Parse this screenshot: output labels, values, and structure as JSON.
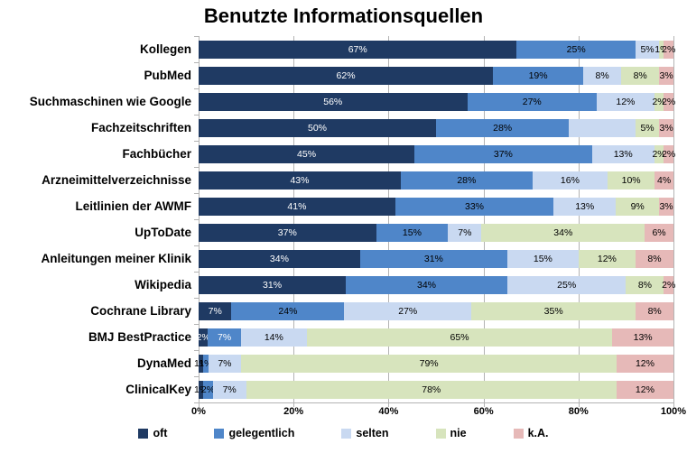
{
  "title": "Benutzte Informationsquellen",
  "colors": {
    "oft": "#1F3A63",
    "gelegentlich": "#4F86C9",
    "selten": "#C9D9F1",
    "nie": "#D7E4BD",
    "kA": "#E6B9B8",
    "grid": "#B3B3B3",
    "label_dark": "#000000",
    "label_light": "#FFFFFF"
  },
  "chart_data": {
    "type": "bar",
    "orientation": "horizontal",
    "stacked": true,
    "title": "Benutzte Informationsquellen",
    "xlabel": "",
    "ylabel": "",
    "xlim": [
      0,
      100
    ],
    "grid": true,
    "legend_position": "bottom",
    "x_ticks": [
      {
        "label": "0%",
        "value": 0
      },
      {
        "label": "20%",
        "value": 20
      },
      {
        "label": "40%",
        "value": 40
      },
      {
        "label": "60%",
        "value": 60
      },
      {
        "label": "80%",
        "value": 80
      },
      {
        "label": "100%",
        "value": 100
      }
    ],
    "legend": [
      {
        "name": "oft",
        "color": "#1F3A63"
      },
      {
        "name": "gelegentlich",
        "color": "#4F86C9"
      },
      {
        "name": "selten",
        "color": "#C9D9F1"
      },
      {
        "name": "nie",
        "color": "#D7E4BD"
      },
      {
        "name": "k.A.",
        "color": "#E6B9B8"
      }
    ],
    "categories": [
      "Kollegen",
      "PubMed",
      "Suchmaschinen wie Google",
      "Fachzeitschriften",
      "Fachbücher",
      "Arzneimittelverzeichnisse",
      "Leitlinien der AWMF",
      "UpToDate",
      "Anleitungen meiner Klinik",
      "Wikipedia",
      "Cochrane Library",
      "BMJ BestPractice",
      "DynaMed",
      "ClinicalKey"
    ],
    "rows": [
      {
        "category": "Kollegen",
        "segments": [
          {
            "series": "oft",
            "value": 67,
            "label": "67%",
            "label_color": "#FFFFFF"
          },
          {
            "series": "gelegentlich",
            "value": 25,
            "label": "25%",
            "label_color": "#000000"
          },
          {
            "series": "selten",
            "value": 5,
            "label": "5%",
            "label_color": "#000000"
          },
          {
            "series": "nie",
            "value": 1,
            "label": "1%",
            "label_color": "#000000"
          },
          {
            "series": "k.A.",
            "value": 2,
            "label": "2%",
            "label_color": "#000000"
          }
        ]
      },
      {
        "category": "PubMed",
        "segments": [
          {
            "series": "oft",
            "value": 62,
            "label": "62%",
            "label_color": "#FFFFFF"
          },
          {
            "series": "gelegentlich",
            "value": 19,
            "label": "19%",
            "label_color": "#000000"
          },
          {
            "series": "selten",
            "value": 8,
            "label": "8%",
            "label_color": "#000000"
          },
          {
            "series": "nie",
            "value": 8,
            "label": "8%",
            "label_color": "#000000"
          },
          {
            "series": "k.A.",
            "value": 3,
            "label": "3%",
            "label_color": "#000000"
          }
        ]
      },
      {
        "category": "Suchmaschinen wie Google",
        "segments": [
          {
            "series": "oft",
            "value": 56,
            "label": "56%",
            "label_color": "#FFFFFF"
          },
          {
            "series": "gelegentlich",
            "value": 27,
            "label": "27%",
            "label_color": "#000000"
          },
          {
            "series": "selten",
            "value": 12,
            "label": "12%",
            "label_color": "#000000"
          },
          {
            "series": "nie",
            "value": 2,
            "label": "2%",
            "label_color": "#000000"
          },
          {
            "series": "k.A.",
            "value": 2,
            "label": "2%",
            "label_color": "#000000"
          }
        ]
      },
      {
        "category": "Fachzeitschriften",
        "segments": [
          {
            "series": "oft",
            "value": 50,
            "label": "50%",
            "label_color": "#FFFFFF"
          },
          {
            "series": "gelegentlich",
            "value": 28,
            "label": "28%",
            "label_color": "#000000"
          },
          {
            "series": "selten",
            "value": 14,
            "label": "",
            "label_color": "#000000"
          },
          {
            "series": "nie",
            "value": 5,
            "label": "5%",
            "label_color": "#000000"
          },
          {
            "series": "k.A.",
            "value": 3,
            "label": "3%",
            "label_color": "#000000"
          }
        ]
      },
      {
        "category": "Fachbücher",
        "segments": [
          {
            "series": "oft",
            "value": 45,
            "label": "45%",
            "label_color": "#FFFFFF"
          },
          {
            "series": "gelegentlich",
            "value": 37,
            "label": "37%",
            "label_color": "#000000"
          },
          {
            "series": "selten",
            "value": 13,
            "label": "13%",
            "label_color": "#000000"
          },
          {
            "series": "nie",
            "value": 2,
            "label": "2%",
            "label_color": "#000000"
          },
          {
            "series": "k.A.",
            "value": 2,
            "label": "2%",
            "label_color": "#000000"
          }
        ]
      },
      {
        "category": "Arzneimittelverzeichnisse",
        "segments": [
          {
            "series": "oft",
            "value": 43,
            "label": "43%",
            "label_color": "#FFFFFF"
          },
          {
            "series": "gelegentlich",
            "value": 28,
            "label": "28%",
            "label_color": "#000000"
          },
          {
            "series": "selten",
            "value": 16,
            "label": "16%",
            "label_color": "#000000"
          },
          {
            "series": "nie",
            "value": 10,
            "label": "10%",
            "label_color": "#000000"
          },
          {
            "series": "k.A.",
            "value": 4,
            "label": "4%",
            "label_color": "#000000"
          }
        ]
      },
      {
        "category": "Leitlinien der AWMF",
        "segments": [
          {
            "series": "oft",
            "value": 41,
            "label": "41%",
            "label_color": "#FFFFFF"
          },
          {
            "series": "gelegentlich",
            "value": 33,
            "label": "33%",
            "label_color": "#000000"
          },
          {
            "series": "selten",
            "value": 13,
            "label": "13%",
            "label_color": "#000000"
          },
          {
            "series": "nie",
            "value": 9,
            "label": "9%",
            "label_color": "#000000"
          },
          {
            "series": "k.A.",
            "value": 3,
            "label": "3%",
            "label_color": "#000000"
          }
        ]
      },
      {
        "category": "UpToDate",
        "segments": [
          {
            "series": "oft",
            "value": 37,
            "label": "37%",
            "label_color": "#FFFFFF"
          },
          {
            "series": "gelegentlich",
            "value": 15,
            "label": "15%",
            "label_color": "#000000"
          },
          {
            "series": "selten",
            "value": 7,
            "label": "7%",
            "label_color": "#000000"
          },
          {
            "series": "nie",
            "value": 34,
            "label": "34%",
            "label_color": "#000000"
          },
          {
            "series": "k.A.",
            "value": 6,
            "label": "6%",
            "label_color": "#000000"
          }
        ]
      },
      {
        "category": "Anleitungen meiner Klinik",
        "segments": [
          {
            "series": "oft",
            "value": 34,
            "label": "34%",
            "label_color": "#FFFFFF"
          },
          {
            "series": "gelegentlich",
            "value": 31,
            "label": "31%",
            "label_color": "#000000"
          },
          {
            "series": "selten",
            "value": 15,
            "label": "15%",
            "label_color": "#000000"
          },
          {
            "series": "nie",
            "value": 12,
            "label": "12%",
            "label_color": "#000000"
          },
          {
            "series": "k.A.",
            "value": 8,
            "label": "8%",
            "label_color": "#000000"
          }
        ]
      },
      {
        "category": "Wikipedia",
        "segments": [
          {
            "series": "oft",
            "value": 31,
            "label": "31%",
            "label_color": "#FFFFFF"
          },
          {
            "series": "gelegentlich",
            "value": 34,
            "label": "34%",
            "label_color": "#000000"
          },
          {
            "series": "selten",
            "value": 25,
            "label": "25%",
            "label_color": "#000000"
          },
          {
            "series": "nie",
            "value": 8,
            "label": "8%",
            "label_color": "#000000"
          },
          {
            "series": "k.A.",
            "value": 2,
            "label": "2%",
            "label_color": "#000000"
          }
        ]
      },
      {
        "category": "Cochrane Library",
        "segments": [
          {
            "series": "oft",
            "value": 7,
            "label": "7%",
            "label_color": "#FFFFFF"
          },
          {
            "series": "gelegentlich",
            "value": 24,
            "label": "24%",
            "label_color": "#000000"
          },
          {
            "series": "selten",
            "value": 27,
            "label": "27%",
            "label_color": "#000000"
          },
          {
            "series": "nie",
            "value": 35,
            "label": "35%",
            "label_color": "#000000"
          },
          {
            "series": "k.A.",
            "value": 8,
            "label": "8%",
            "label_color": "#000000"
          }
        ]
      },
      {
        "category": "BMJ BestPractice",
        "segments": [
          {
            "series": "oft",
            "value": 2,
            "label": "2%",
            "label_color": "#FFFFFF"
          },
          {
            "series": "gelegentlich",
            "value": 7,
            "label": "7%",
            "label_color": "#FFFFFF"
          },
          {
            "series": "selten",
            "value": 14,
            "label": "14%",
            "label_color": "#000000"
          },
          {
            "series": "nie",
            "value": 65,
            "label": "65%",
            "label_color": "#000000"
          },
          {
            "series": "k.A.",
            "value": 13,
            "label": "13%",
            "label_color": "#000000"
          }
        ]
      },
      {
        "category": "DynaMed",
        "segments": [
          {
            "series": "oft",
            "value": 1,
            "label": "1%",
            "label_color": "#000000"
          },
          {
            "series": "gelegentlich",
            "value": 1,
            "label": "1%",
            "label_color": "#000000"
          },
          {
            "series": "selten",
            "value": 7,
            "label": "7%",
            "label_color": "#000000"
          },
          {
            "series": "nie",
            "value": 79,
            "label": "79%",
            "label_color": "#000000"
          },
          {
            "series": "k.A.",
            "value": 12,
            "label": "12%",
            "label_color": "#000000"
          }
        ]
      },
      {
        "category": "ClinicalKey",
        "segments": [
          {
            "series": "oft",
            "value": 1,
            "label": "1%",
            "label_color": "#000000"
          },
          {
            "series": "gelegentlich",
            "value": 2,
            "label": "2%",
            "label_color": "#000000"
          },
          {
            "series": "selten",
            "value": 7,
            "label": "7%",
            "label_color": "#000000"
          },
          {
            "series": "nie",
            "value": 78,
            "label": "78%",
            "label_color": "#000000"
          },
          {
            "series": "k.A.",
            "value": 12,
            "label": "12%",
            "label_color": "#000000"
          }
        ]
      }
    ]
  }
}
